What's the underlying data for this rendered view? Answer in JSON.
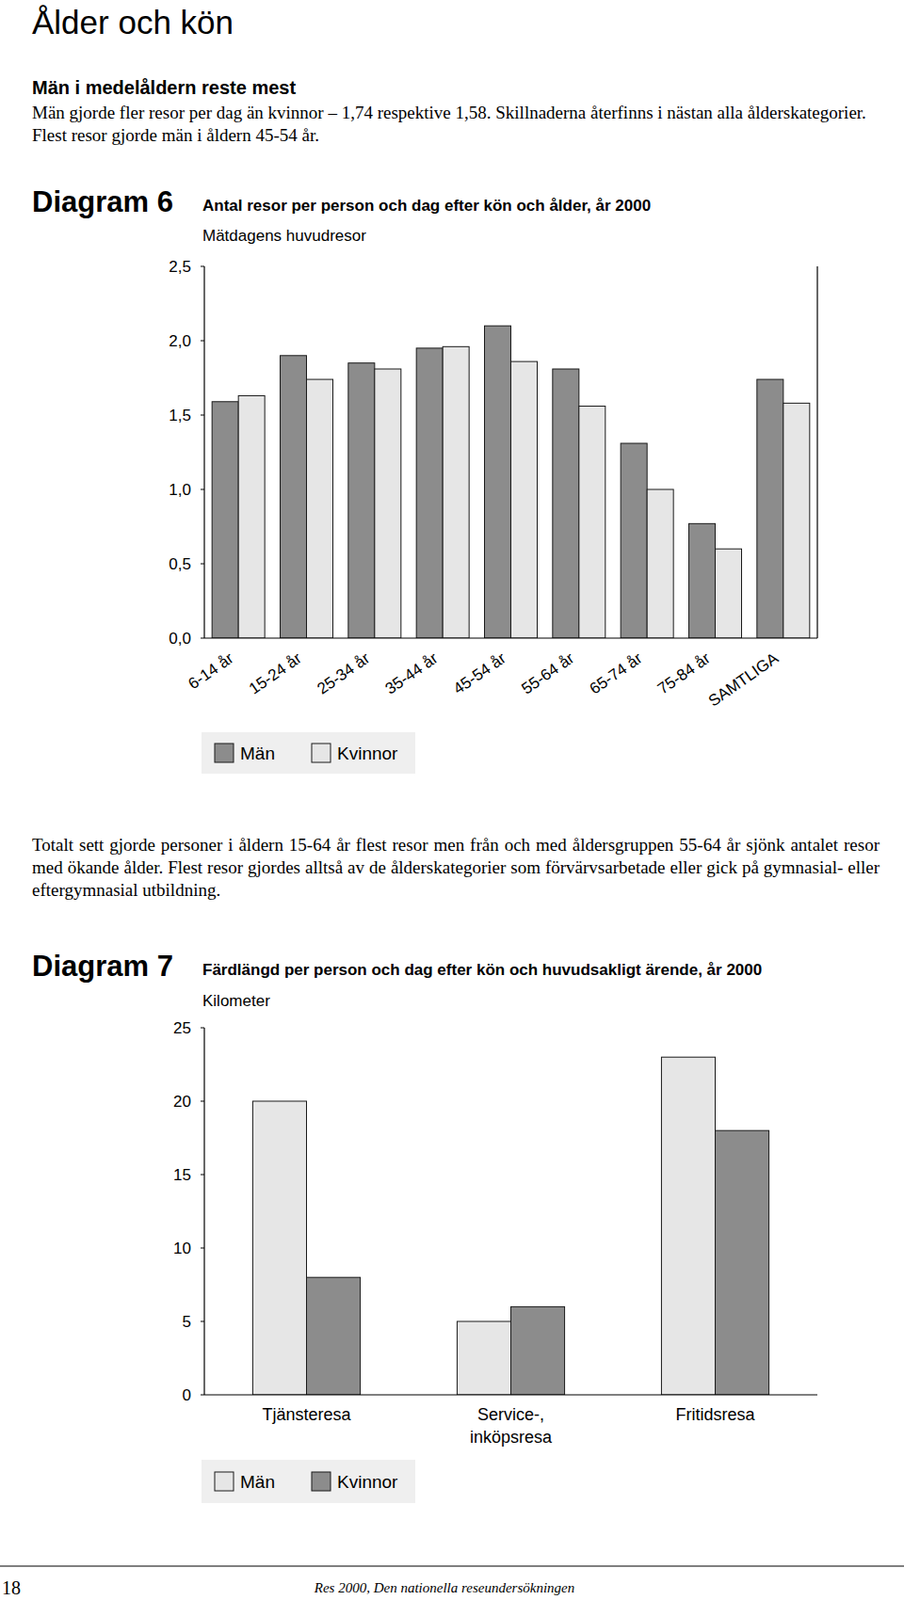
{
  "page": {
    "heading": "Ålder och kön",
    "subheading": "Män i medelåldern reste mest",
    "paragraphs": [
      "Män gjorde fler resor per dag än kvinnor – 1,74 respektive 1,58. Skillnaderna återfinns i nästan alla ålderskategorier. Flest resor gjorde män i åldern 45-54 år.",
      "Totalt sett gjorde personer i åldern 15-64 år flest resor men från och med åldersgruppen 55-64 år sjönk antalet resor med ökande ålder. Flest resor gjordes alltså av de ålderskategorier som förvärvsarbetade eller gick på gymnasial- eller eftergymnasial utbildning."
    ],
    "page_number": 18,
    "footer": "Res 2000, Den nationella reseundersökningen"
  },
  "chart_data": [
    {
      "type": "bar",
      "annotations": [
        "Diagram 6"
      ],
      "title": "Antal resor per person och dag efter kön och ålder, år 2000",
      "subtitle": "Mätdagens huvudresor",
      "categories": [
        "6-14 år",
        "15-24 år",
        "25-34 år",
        "35-44 år",
        "45-54 år",
        "55-64 år",
        "65-74 år",
        "75-84 år",
        "SAMTLIGA"
      ],
      "series": [
        {
          "name": "Män",
          "color": "#8c8c8c",
          "values": [
            1.59,
            1.9,
            1.85,
            1.95,
            2.1,
            1.81,
            1.31,
            0.77,
            1.74
          ]
        },
        {
          "name": "Kvinnor",
          "color": "#e6e6e6",
          "values": [
            1.63,
            1.74,
            1.81,
            1.96,
            1.86,
            1.56,
            1.0,
            0.6,
            1.58
          ]
        }
      ],
      "ylim": [
        0,
        2.5
      ],
      "yticks": [
        {
          "value": 0,
          "label": "0,0"
        },
        {
          "value": 0.5,
          "label": "0,5"
        },
        {
          "value": 1,
          "label": "1,0"
        },
        {
          "value": 1.5,
          "label": "1,5"
        },
        {
          "value": 2,
          "label": "2,0"
        },
        {
          "value": 2.5,
          "label": "2,5"
        }
      ],
      "grid": false,
      "legend": "bottom"
    },
    {
      "type": "bar",
      "annotations": [
        "Diagram 7"
      ],
      "title": "Färdlängd per person och dag efter kön och huvudsakligt ärende, år 2000",
      "subtitle": "Kilometer",
      "categories": [
        "Tjänsteresa",
        "Service-,\ninköpsresa",
        "Fritidsresa"
      ],
      "series": [
        {
          "name": "Män",
          "color": "#e6e6e6",
          "values": [
            20,
            5,
            23
          ]
        },
        {
          "name": "Kvinnor",
          "color": "#8c8c8c",
          "values": [
            8,
            6,
            18
          ]
        }
      ],
      "ylim": [
        0,
        25
      ],
      "yticks": [
        0,
        5,
        10,
        15,
        20,
        25
      ],
      "grid": false,
      "legend": "bottom"
    }
  ]
}
